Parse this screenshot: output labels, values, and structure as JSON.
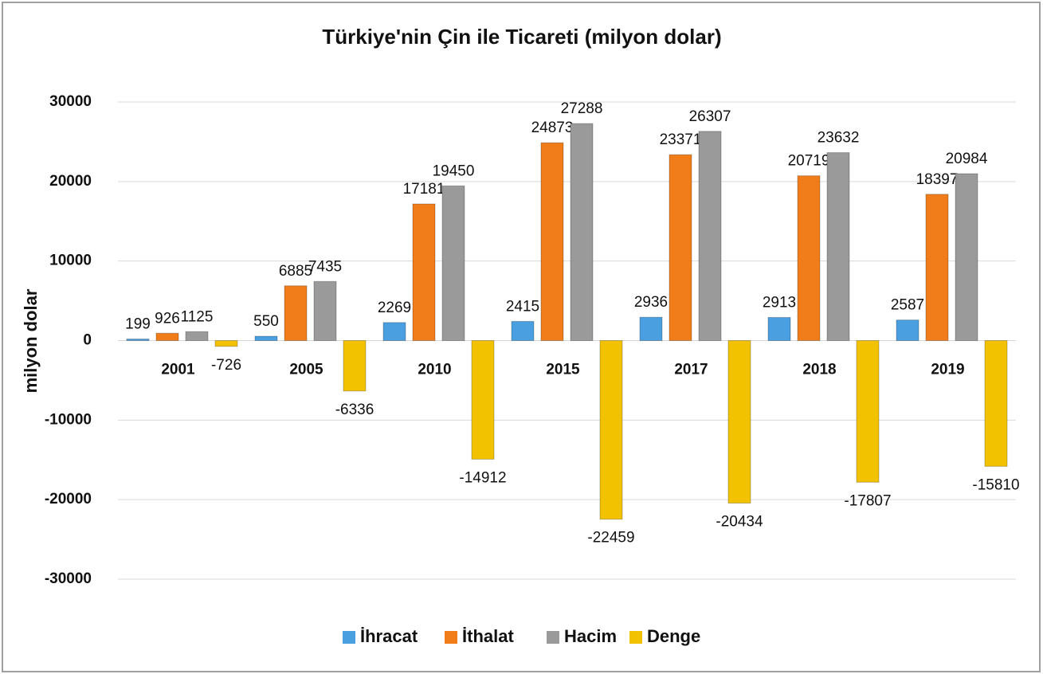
{
  "chart_data": {
    "type": "bar",
    "title": "Türkiye'nin Çin ile Ticareti (milyon dolar)",
    "y_label": "milyon dolar",
    "categories": [
      "2001",
      "2005",
      "2010",
      "2015",
      "2017",
      "2018",
      "2019"
    ],
    "series": [
      {
        "name": "İhracat",
        "color": "#4a9fe0",
        "values": [
          199,
          550,
          2269,
          2415,
          2936,
          2913,
          2587
        ]
      },
      {
        "name": "İthalat",
        "color": "#f07d1a",
        "values": [
          926,
          6885,
          17181,
          24873,
          23371,
          20719,
          18397
        ]
      },
      {
        "name": "Hacim",
        "color": "#9a9a9a",
        "values": [
          1125,
          7435,
          19450,
          27288,
          26307,
          23632,
          20984
        ]
      },
      {
        "name": "Denge",
        "color": "#f2c200",
        "values": [
          -726,
          -6336,
          -14912,
          -22459,
          -20434,
          -17807,
          -15810
        ]
      }
    ],
    "ylim": [
      -30000,
      30000
    ],
    "yticks": [
      -30000,
      -20000,
      -10000,
      0,
      10000,
      20000,
      30000
    ],
    "grid": true,
    "legend": "bottom"
  }
}
